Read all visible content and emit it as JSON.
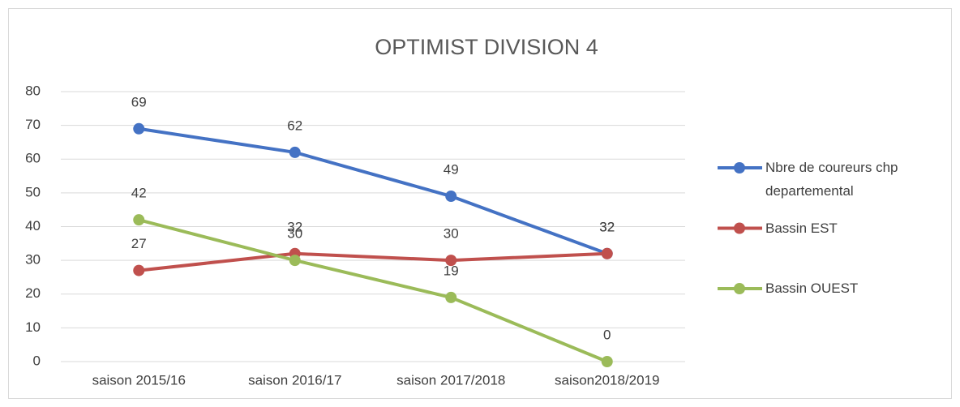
{
  "chart_data": {
    "type": "line",
    "title": "OPTIMIST DIVISION 4",
    "categories": [
      "saison 2015/16",
      "saison 2016/17",
      "saison 2017/2018",
      "saison2018/2019"
    ],
    "series": [
      {
        "name": "Nbre de coureurs  chp departemental",
        "color": "#4472c4",
        "values": [
          69,
          62,
          49,
          32
        ]
      },
      {
        "name": "Bassin EST",
        "color": "#c0504d",
        "values": [
          27,
          32,
          30,
          32
        ]
      },
      {
        "name": "Bassin OUEST",
        "color": "#9bbb59",
        "values": [
          42,
          30,
          19,
          0
        ]
      }
    ],
    "ylim": [
      0,
      80
    ],
    "yticks": [
      0,
      10,
      20,
      30,
      40,
      50,
      60,
      70,
      80
    ],
    "grid": true,
    "legend": "right"
  }
}
